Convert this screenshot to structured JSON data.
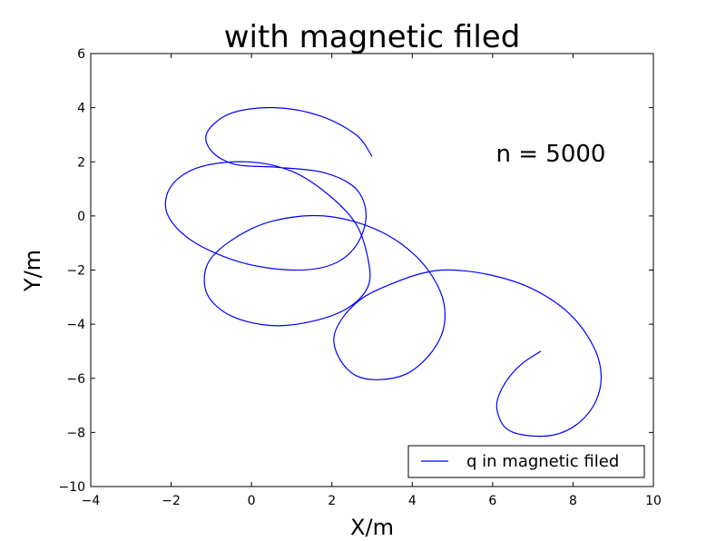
{
  "chart_data": {
    "type": "line",
    "title": "with magnetic filed",
    "xlabel": "X/m",
    "ylabel": "Y/m",
    "xlim": [
      -4,
      10
    ],
    "ylim": [
      -10,
      6
    ],
    "xticks": [
      -4,
      -2,
      0,
      2,
      4,
      6,
      8,
      10
    ],
    "yticks": [
      -10,
      -8,
      -6,
      -4,
      -2,
      0,
      2,
      4,
      6
    ],
    "grid": false,
    "legend_position": "lower-right",
    "annotation": "n = 5000",
    "series": [
      {
        "name": "q in magnetic filed",
        "color": "#0000ff",
        "x": [
          7.2,
          6.7,
          6.3,
          6.1,
          6.3,
          6.8,
          7.5,
          8.1,
          8.55,
          8.7,
          8.5,
          7.9,
          7.0,
          6.0,
          5.0,
          4.3,
          3.5,
          2.8,
          2.3,
          2.05,
          2.2,
          2.6,
          3.2,
          3.9,
          4.5,
          4.8,
          4.7,
          4.1,
          3.1,
          1.8,
          0.5,
          -0.5,
          -1.1,
          -1.1,
          -0.5,
          0.5,
          1.5,
          2.4,
          2.9,
          2.9,
          2.6,
          1.9,
          1.0,
          -0.1,
          -1.3,
          -2.0,
          -2.1,
          -1.5,
          -0.3,
          1.0,
          2.0,
          2.6,
          2.85,
          2.6,
          1.8,
          0.6,
          -0.4,
          -1.0,
          -1.1,
          -0.5,
          0.6,
          1.7,
          2.6,
          3.0
        ],
        "y": [
          -5.0,
          -5.5,
          -6.2,
          -7.0,
          -7.8,
          -8.1,
          -8.1,
          -7.7,
          -6.9,
          -5.9,
          -4.8,
          -3.6,
          -2.7,
          -2.2,
          -2.0,
          -2.1,
          -2.5,
          -3.0,
          -3.7,
          -4.5,
          -5.3,
          -5.9,
          -6.05,
          -5.8,
          -5.0,
          -4.0,
          -2.8,
          -1.5,
          -0.5,
          0.0,
          -0.2,
          -0.9,
          -1.8,
          -2.9,
          -3.7,
          -4.05,
          -3.9,
          -3.4,
          -2.6,
          -1.6,
          -0.3,
          0.8,
          1.65,
          2.0,
          1.8,
          1.1,
          0.1,
          -0.9,
          -1.7,
          -2.0,
          -1.8,
          -1.1,
          0.0,
          1.0,
          1.6,
          1.8,
          1.9,
          2.4,
          3.1,
          3.8,
          4.0,
          3.7,
          3.0,
          2.2
        ]
      }
    ]
  }
}
